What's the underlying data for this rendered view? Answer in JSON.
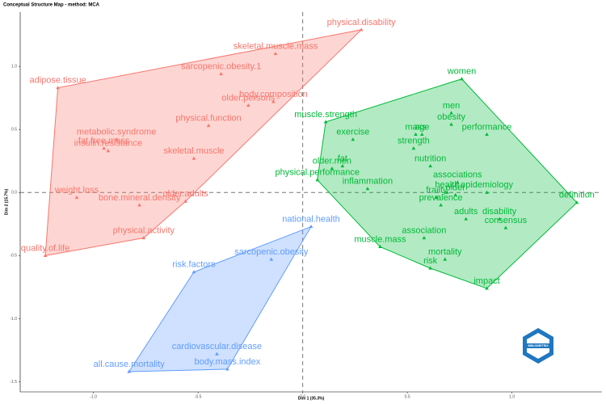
{
  "chart_data": {
    "type": "scatter",
    "title": "Conceptual Structure Map - method: MCA",
    "xlabel": "Dim 1 (35.3%)",
    "ylabel": "Dim 2 (15.7%)",
    "xlim": [
      -1.35,
      1.43
    ],
    "ylim": [
      -1.58,
      1.43
    ],
    "xticks": [
      {
        "value": -1,
        "label": "-1.0"
      },
      {
        "value": -0.5,
        "label": "-0.5"
      },
      {
        "value": 0,
        "label": "0.0"
      },
      {
        "value": 0.5,
        "label": "0.5"
      },
      {
        "value": 1,
        "label": "1.0"
      }
    ],
    "yticks": [
      {
        "value": 1,
        "label": "1.0"
      },
      {
        "value": 0.5,
        "label": "0.5"
      },
      {
        "value": 0,
        "label": "0.0"
      },
      {
        "value": -0.5,
        "label": "-0.5"
      },
      {
        "value": -1,
        "label": "-1.0"
      },
      {
        "value": -1.5,
        "label": "-1.5"
      }
    ],
    "logo_text": "BIBLIOMETRIX",
    "clusters": [
      {
        "color": "#F8766D",
        "points": [
          {
            "label": "physical.disability",
            "x": 0.28,
            "y": 1.29
          },
          {
            "label": "skeletal.muscle.mass",
            "x": -0.13,
            "y": 1.1
          },
          {
            "label": "sarcopenic.obesity.1",
            "x": -0.39,
            "y": 0.94
          },
          {
            "label": "adipose.tissue",
            "x": -1.17,
            "y": 0.83
          },
          {
            "label": "body.composition",
            "x": -0.14,
            "y": 0.72
          },
          {
            "label": "older.persons",
            "x": -0.26,
            "y": 0.69
          },
          {
            "label": "physical.function",
            "x": -0.45,
            "y": 0.53
          },
          {
            "label": "metabolic.syndrome",
            "x": -0.89,
            "y": 0.42
          },
          {
            "label": "fat.free.mass",
            "x": -0.95,
            "y": 0.35
          },
          {
            "label": "insulin.resistance",
            "x": -0.93,
            "y": 0.33
          },
          {
            "label": "skeletal.muscle",
            "x": -0.52,
            "y": 0.27
          },
          {
            "label": "weight.loss",
            "x": -1.08,
            "y": -0.04
          },
          {
            "label": "older.adults",
            "x": -0.56,
            "y": -0.07
          },
          {
            "label": "bone.mineral.density",
            "x": -0.78,
            "y": -0.1
          },
          {
            "label": "physical.activity",
            "x": -0.76,
            "y": -0.36
          },
          {
            "label": "quality.of.life",
            "x": -1.23,
            "y": -0.5
          }
        ]
      },
      {
        "color": "#00BA38",
        "points": [
          {
            "label": "women",
            "x": 0.76,
            "y": 0.9
          },
          {
            "label": "men",
            "x": 0.71,
            "y": 0.63
          },
          {
            "label": "obesity",
            "x": 0.71,
            "y": 0.54
          },
          {
            "label": "muscle.strength",
            "x": 0.11,
            "y": 0.56
          },
          {
            "label": "mass",
            "x": 0.54,
            "y": 0.46
          },
          {
            "label": "age",
            "x": 0.57,
            "y": 0.46
          },
          {
            "label": "performance",
            "x": 0.88,
            "y": 0.46
          },
          {
            "label": "exercise",
            "x": 0.24,
            "y": 0.42
          },
          {
            "label": "strength",
            "x": 0.53,
            "y": 0.35
          },
          {
            "label": "fat",
            "x": 0.19,
            "y": 0.21
          },
          {
            "label": "nutrition",
            "x": 0.61,
            "y": 0.21
          },
          {
            "label": "older.men",
            "x": 0.14,
            "y": 0.19
          },
          {
            "label": "associations",
            "x": 0.74,
            "y": 0.08
          },
          {
            "label": "physical.performance",
            "x": 0.07,
            "y": 0.1
          },
          {
            "label": "inflammation",
            "x": 0.31,
            "y": 0.03
          },
          {
            "label": "health",
            "x": 0.69,
            "y": 0.0
          },
          {
            "label": "epidemiology",
            "x": 0.88,
            "y": 0.0
          },
          {
            "label": "frailty",
            "x": 0.64,
            "y": -0.04
          },
          {
            "label": "older",
            "x": 0.73,
            "y": -0.02
          },
          {
            "label": "definition",
            "x": 1.31,
            "y": -0.08
          },
          {
            "label": "prevalence",
            "x": 0.66,
            "y": -0.1
          },
          {
            "label": "disability",
            "x": 0.94,
            "y": -0.21
          },
          {
            "label": "adults",
            "x": 0.78,
            "y": -0.21
          },
          {
            "label": "consensus",
            "x": 0.97,
            "y": -0.28
          },
          {
            "label": "association",
            "x": 0.58,
            "y": -0.36
          },
          {
            "label": "mortality",
            "x": 0.68,
            "y": -0.53
          },
          {
            "label": "muscle.mass",
            "x": 0.37,
            "y": -0.43
          },
          {
            "label": "risk",
            "x": 0.61,
            "y": -0.6
          },
          {
            "label": "impact",
            "x": 0.88,
            "y": -0.76
          }
        ]
      },
      {
        "color": "#619CFF",
        "points": [
          {
            "label": "national.health",
            "x": 0.04,
            "y": -0.27
          },
          {
            "label": "sarcopenic.obesity",
            "x": -0.15,
            "y": -0.53
          },
          {
            "label": "risk.factors",
            "x": -0.52,
            "y": -0.63
          },
          {
            "label": "cardiovascular.disease",
            "x": -0.41,
            "y": -1.28
          },
          {
            "label": "all.cause.mortality",
            "x": -0.83,
            "y": -1.42
          },
          {
            "label": "body.mass.index",
            "x": -0.36,
            "y": -1.4
          }
        ]
      }
    ]
  }
}
